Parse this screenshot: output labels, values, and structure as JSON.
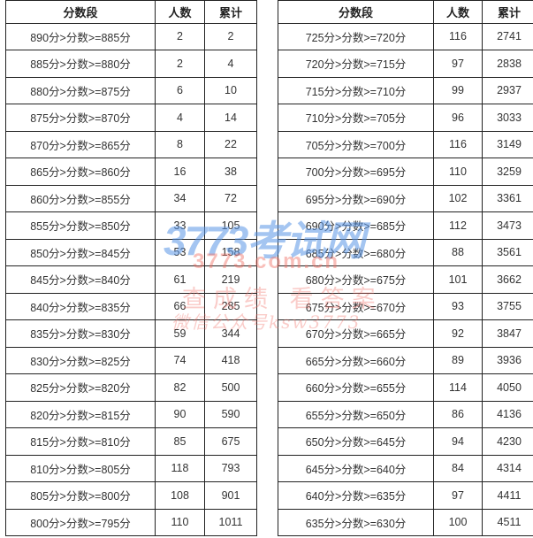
{
  "headers": [
    "分数段",
    "人数",
    "累计"
  ],
  "left_rows": [
    [
      "890分>分数>=885分",
      "2",
      "2"
    ],
    [
      "885分>分数>=880分",
      "2",
      "4"
    ],
    [
      "880分>分数>=875分",
      "6",
      "10"
    ],
    [
      "875分>分数>=870分",
      "4",
      "14"
    ],
    [
      "870分>分数>=865分",
      "8",
      "22"
    ],
    [
      "865分>分数>=860分",
      "16",
      "38"
    ],
    [
      "860分>分数>=855分",
      "34",
      "72"
    ],
    [
      "855分>分数>=850分",
      "33",
      "105"
    ],
    [
      "850分>分数>=845分",
      "53",
      "158"
    ],
    [
      "845分>分数>=840分",
      "61",
      "219"
    ],
    [
      "840分>分数>=835分",
      "66",
      "285"
    ],
    [
      "835分>分数>=830分",
      "59",
      "344"
    ],
    [
      "830分>分数>=825分",
      "74",
      "418"
    ],
    [
      "825分>分数>=820分",
      "82",
      "500"
    ],
    [
      "820分>分数>=815分",
      "90",
      "590"
    ],
    [
      "815分>分数>=810分",
      "85",
      "675"
    ],
    [
      "810分>分数>=805分",
      "118",
      "793"
    ],
    [
      "805分>分数>=800分",
      "108",
      "901"
    ],
    [
      "800分>分数>=795分",
      "110",
      "1011"
    ]
  ],
  "right_rows": [
    [
      "725分>分数>=720分",
      "116",
      "2741"
    ],
    [
      "720分>分数>=715分",
      "97",
      "2838"
    ],
    [
      "715分>分数>=710分",
      "99",
      "2937"
    ],
    [
      "710分>分数>=705分",
      "96",
      "3033"
    ],
    [
      "705分>分数>=700分",
      "116",
      "3149"
    ],
    [
      "700分>分数>=695分",
      "110",
      "3259"
    ],
    [
      "695分>分数>=690分",
      "102",
      "3361"
    ],
    [
      "690分>分数>=685分",
      "112",
      "3473"
    ],
    [
      "685分>分数>=680分",
      "88",
      "3561"
    ],
    [
      "680分>分数>=675分",
      "101",
      "3662"
    ],
    [
      "675分>分数>=670分",
      "93",
      "3755"
    ],
    [
      "670分>分数>=665分",
      "92",
      "3847"
    ],
    [
      "665分>分数>=660分",
      "89",
      "3936"
    ],
    [
      "660分>分数>=655分",
      "114",
      "4050"
    ],
    [
      "655分>分数>=650分",
      "86",
      "4136"
    ],
    [
      "650分>分数>=645分",
      "94",
      "4230"
    ],
    [
      "645分>分数>=640分",
      "84",
      "4314"
    ],
    [
      "640分>分数>=635分",
      "97",
      "4411"
    ],
    [
      "635分>分数>=630分",
      "100",
      "4511"
    ]
  ],
  "watermark": {
    "logo": "3773考试网",
    "site": "3773.com.cn",
    "slogan": "查成绩 看答案",
    "wechat": "微信公众号ksw3773"
  }
}
